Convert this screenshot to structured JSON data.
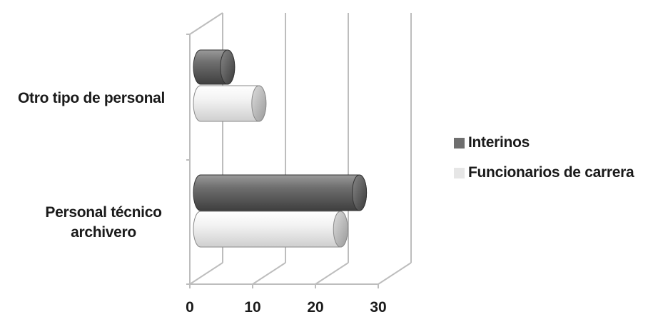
{
  "chart_data": {
    "type": "bar",
    "orientation": "horizontal",
    "style": "3d-cylinder",
    "categories": [
      "Personal técnico archivero",
      "Otro tipo de personal"
    ],
    "category_label_lines": [
      [
        "Personal técnico",
        "archivero"
      ],
      [
        "Otro tipo de personal"
      ]
    ],
    "series": [
      {
        "name": "Interinos",
        "values": [
          27,
          6
        ],
        "color": "#6f6f6f"
      },
      {
        "name": "Funcionarios de carrera",
        "values": [
          24,
          11
        ],
        "color": "#e6e6e6"
      }
    ],
    "xlim": [
      0,
      30
    ],
    "xticks": [
      "0",
      "10",
      "20",
      "30"
    ],
    "grid": true,
    "legend": "right"
  }
}
